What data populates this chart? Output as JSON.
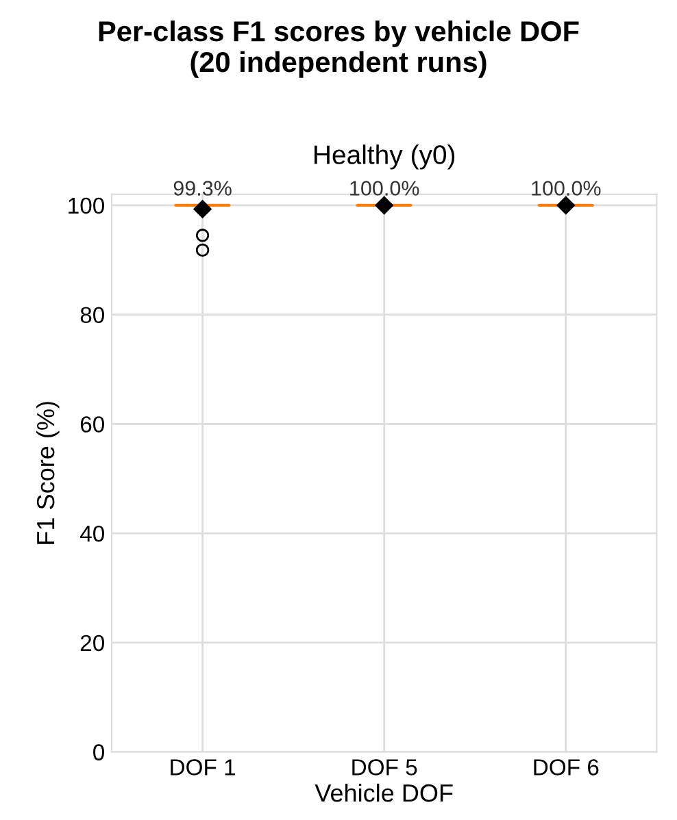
{
  "chart_data": {
    "type": "box",
    "title": "Per-class F1 scores by vehicle DOF\n(20 independent runs)",
    "subtitle": "Healthy (y0)",
    "xlabel": "Vehicle DOF",
    "ylabel": "F1 Score (%)",
    "categories": [
      "DOF 1",
      "DOF 5",
      "DOF 6"
    ],
    "boxes": [
      {
        "low": 100,
        "q1": 100,
        "median": 100,
        "q3": 100,
        "high": 100,
        "mean": 99.3,
        "outliers": [
          94.5,
          91.8
        ]
      },
      {
        "low": 100,
        "q1": 100,
        "median": 100,
        "q3": 100,
        "high": 100,
        "mean": 100
      },
      {
        "low": 100,
        "q1": 100,
        "median": 100,
        "q3": 100,
        "high": 100,
        "mean": 100
      }
    ],
    "value_labels": [
      "99.3%",
      "100.0%",
      "100.0%"
    ],
    "color": "#ff7f0e",
    "ylim": [
      0,
      102
    ],
    "yticks": [
      0,
      20,
      40,
      60,
      80,
      100
    ],
    "grid": true
  }
}
